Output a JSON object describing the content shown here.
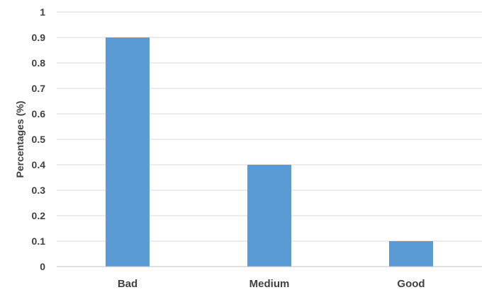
{
  "chart_data": {
    "type": "bar",
    "title": "",
    "xlabel": "",
    "ylabel": "Percentages (%)",
    "categories": [
      "Bad",
      "Medium",
      "Good"
    ],
    "values": [
      0.9,
      0.4,
      0.1
    ],
    "ylim": [
      0,
      1
    ],
    "yticks": [
      "0",
      "0.1",
      "0.2",
      "0.3",
      "0.4",
      "0.5",
      "0.6",
      "0.7",
      "0.8",
      "0.9",
      "1"
    ],
    "grid": true,
    "legend": "none",
    "bar_color": "#5b9bd5"
  }
}
